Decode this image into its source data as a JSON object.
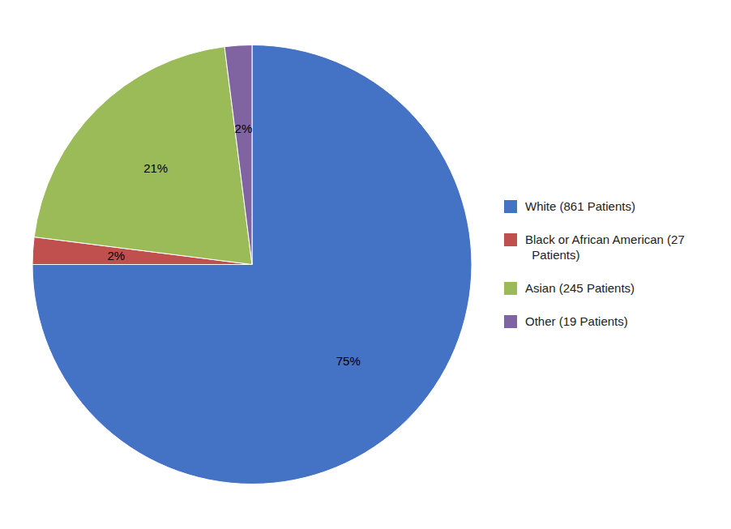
{
  "chart_data": {
    "type": "pie",
    "categories": [
      "White (861 Patients)",
      "Black or African American (27\n  Patients)",
      "Asian (245 Patients)",
      "Other (19 Patients)"
    ],
    "values": [
      75,
      2,
      21,
      2
    ],
    "value_labels": [
      "75%",
      "2%",
      "21%",
      "2%"
    ],
    "colors": [
      "#4472C4",
      "#C0504D",
      "#9BBB59",
      "#8064A2"
    ],
    "data_labels": true,
    "legend": "right"
  }
}
